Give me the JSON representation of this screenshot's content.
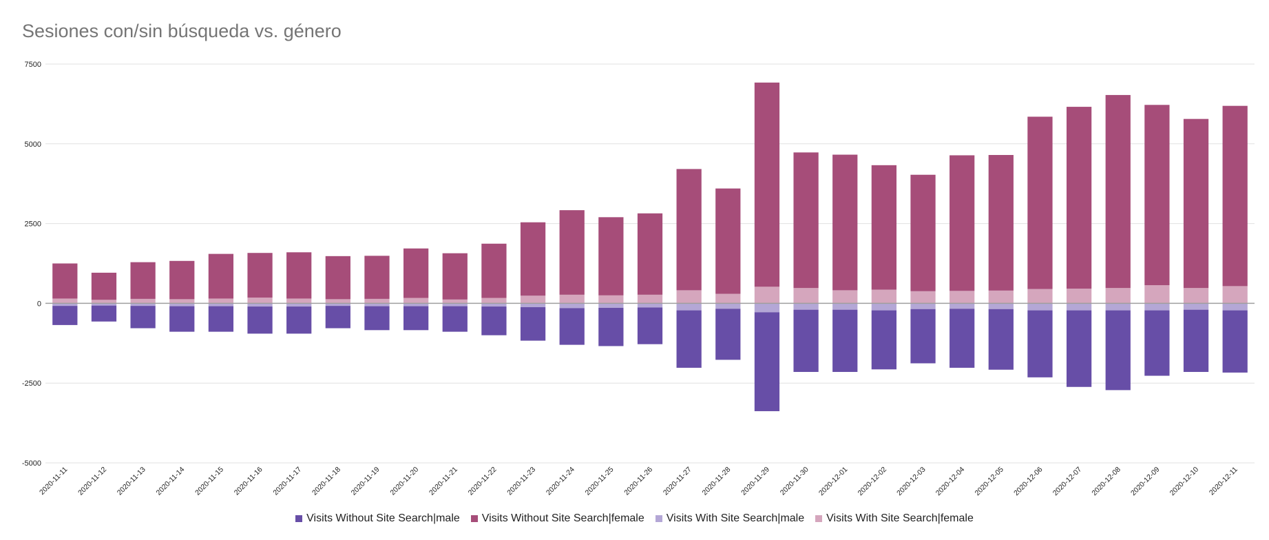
{
  "chart_data": {
    "type": "bar",
    "stacked": true,
    "title": "Sesiones con/sin búsqueda vs. género",
    "xlabel": "",
    "ylabel": "",
    "ylim": [
      -5000,
      7500
    ],
    "yticks": [
      7500,
      5000,
      2500,
      0,
      -2500,
      -5000
    ],
    "ytick_labels": [
      "7500",
      "5000",
      "2500",
      "0",
      "-2500",
      "-5000"
    ],
    "grid": true,
    "legend_position": "bottom",
    "categories": [
      "2020-11-11",
      "2020-11-12",
      "2020-11-13",
      "2020-11-14",
      "2020-11-15",
      "2020-11-16",
      "2020-11-17",
      "2020-11-18",
      "2020-11-19",
      "2020-11-20",
      "2020-11-21",
      "2020-11-22",
      "2020-11-23",
      "2020-11-24",
      "2020-11-25",
      "2020-11-26",
      "2020-11-27",
      "2020-11-28",
      "2020-11-29",
      "2020-11-30",
      "2020-12-01",
      "2020-12-02",
      "2020-12-03",
      "2020-12-04",
      "2020-12-05",
      "2020-12-06",
      "2020-12-07",
      "2020-12-08",
      "2020-12-09",
      "2020-12-10",
      "2020-12-11"
    ],
    "series": [
      {
        "name": "Visits Without Site Search|male",
        "color": "#674ea7",
        "values": [
          -600,
          -500,
          -700,
          -800,
          -800,
          -850,
          -850,
          -700,
          -750,
          -750,
          -800,
          -900,
          -1050,
          -1150,
          -1200,
          -1150,
          -1800,
          -1600,
          -3100,
          -1950,
          -1950,
          -1850,
          -1700,
          -1850,
          -1900,
          -2100,
          -2400,
          -2500,
          -2050,
          -1950,
          -1950
        ]
      },
      {
        "name": "Visits Without Site Search|female",
        "color": "#a64d79",
        "values": [
          1100,
          850,
          1150,
          1200,
          1400,
          1400,
          1450,
          1350,
          1350,
          1550,
          1450,
          1700,
          2300,
          2650,
          2450,
          2550,
          3800,
          3300,
          6400,
          4250,
          4250,
          3900,
          3650,
          4250,
          4250,
          5400,
          5700,
          6050,
          5650,
          5300,
          5650
        ]
      },
      {
        "name": "Visits With Site Search|male",
        "color": "#b4a7d6",
        "values": [
          -80,
          -70,
          -80,
          -90,
          -90,
          -100,
          -100,
          -80,
          -90,
          -90,
          -90,
          -100,
          -120,
          -150,
          -140,
          -130,
          -220,
          -170,
          -280,
          -200,
          -200,
          -220,
          -180,
          -170,
          -180,
          -220,
          -220,
          -220,
          -220,
          -200,
          -220
        ]
      },
      {
        "name": "Visits With Site Search|female",
        "color": "#d5a6bd",
        "values": [
          150,
          110,
          140,
          130,
          150,
          180,
          150,
          130,
          140,
          170,
          120,
          170,
          240,
          270,
          250,
          270,
          410,
          300,
          520,
          480,
          410,
          430,
          380,
          390,
          400,
          450,
          460,
          480,
          570,
          480,
          540
        ]
      }
    ]
  }
}
